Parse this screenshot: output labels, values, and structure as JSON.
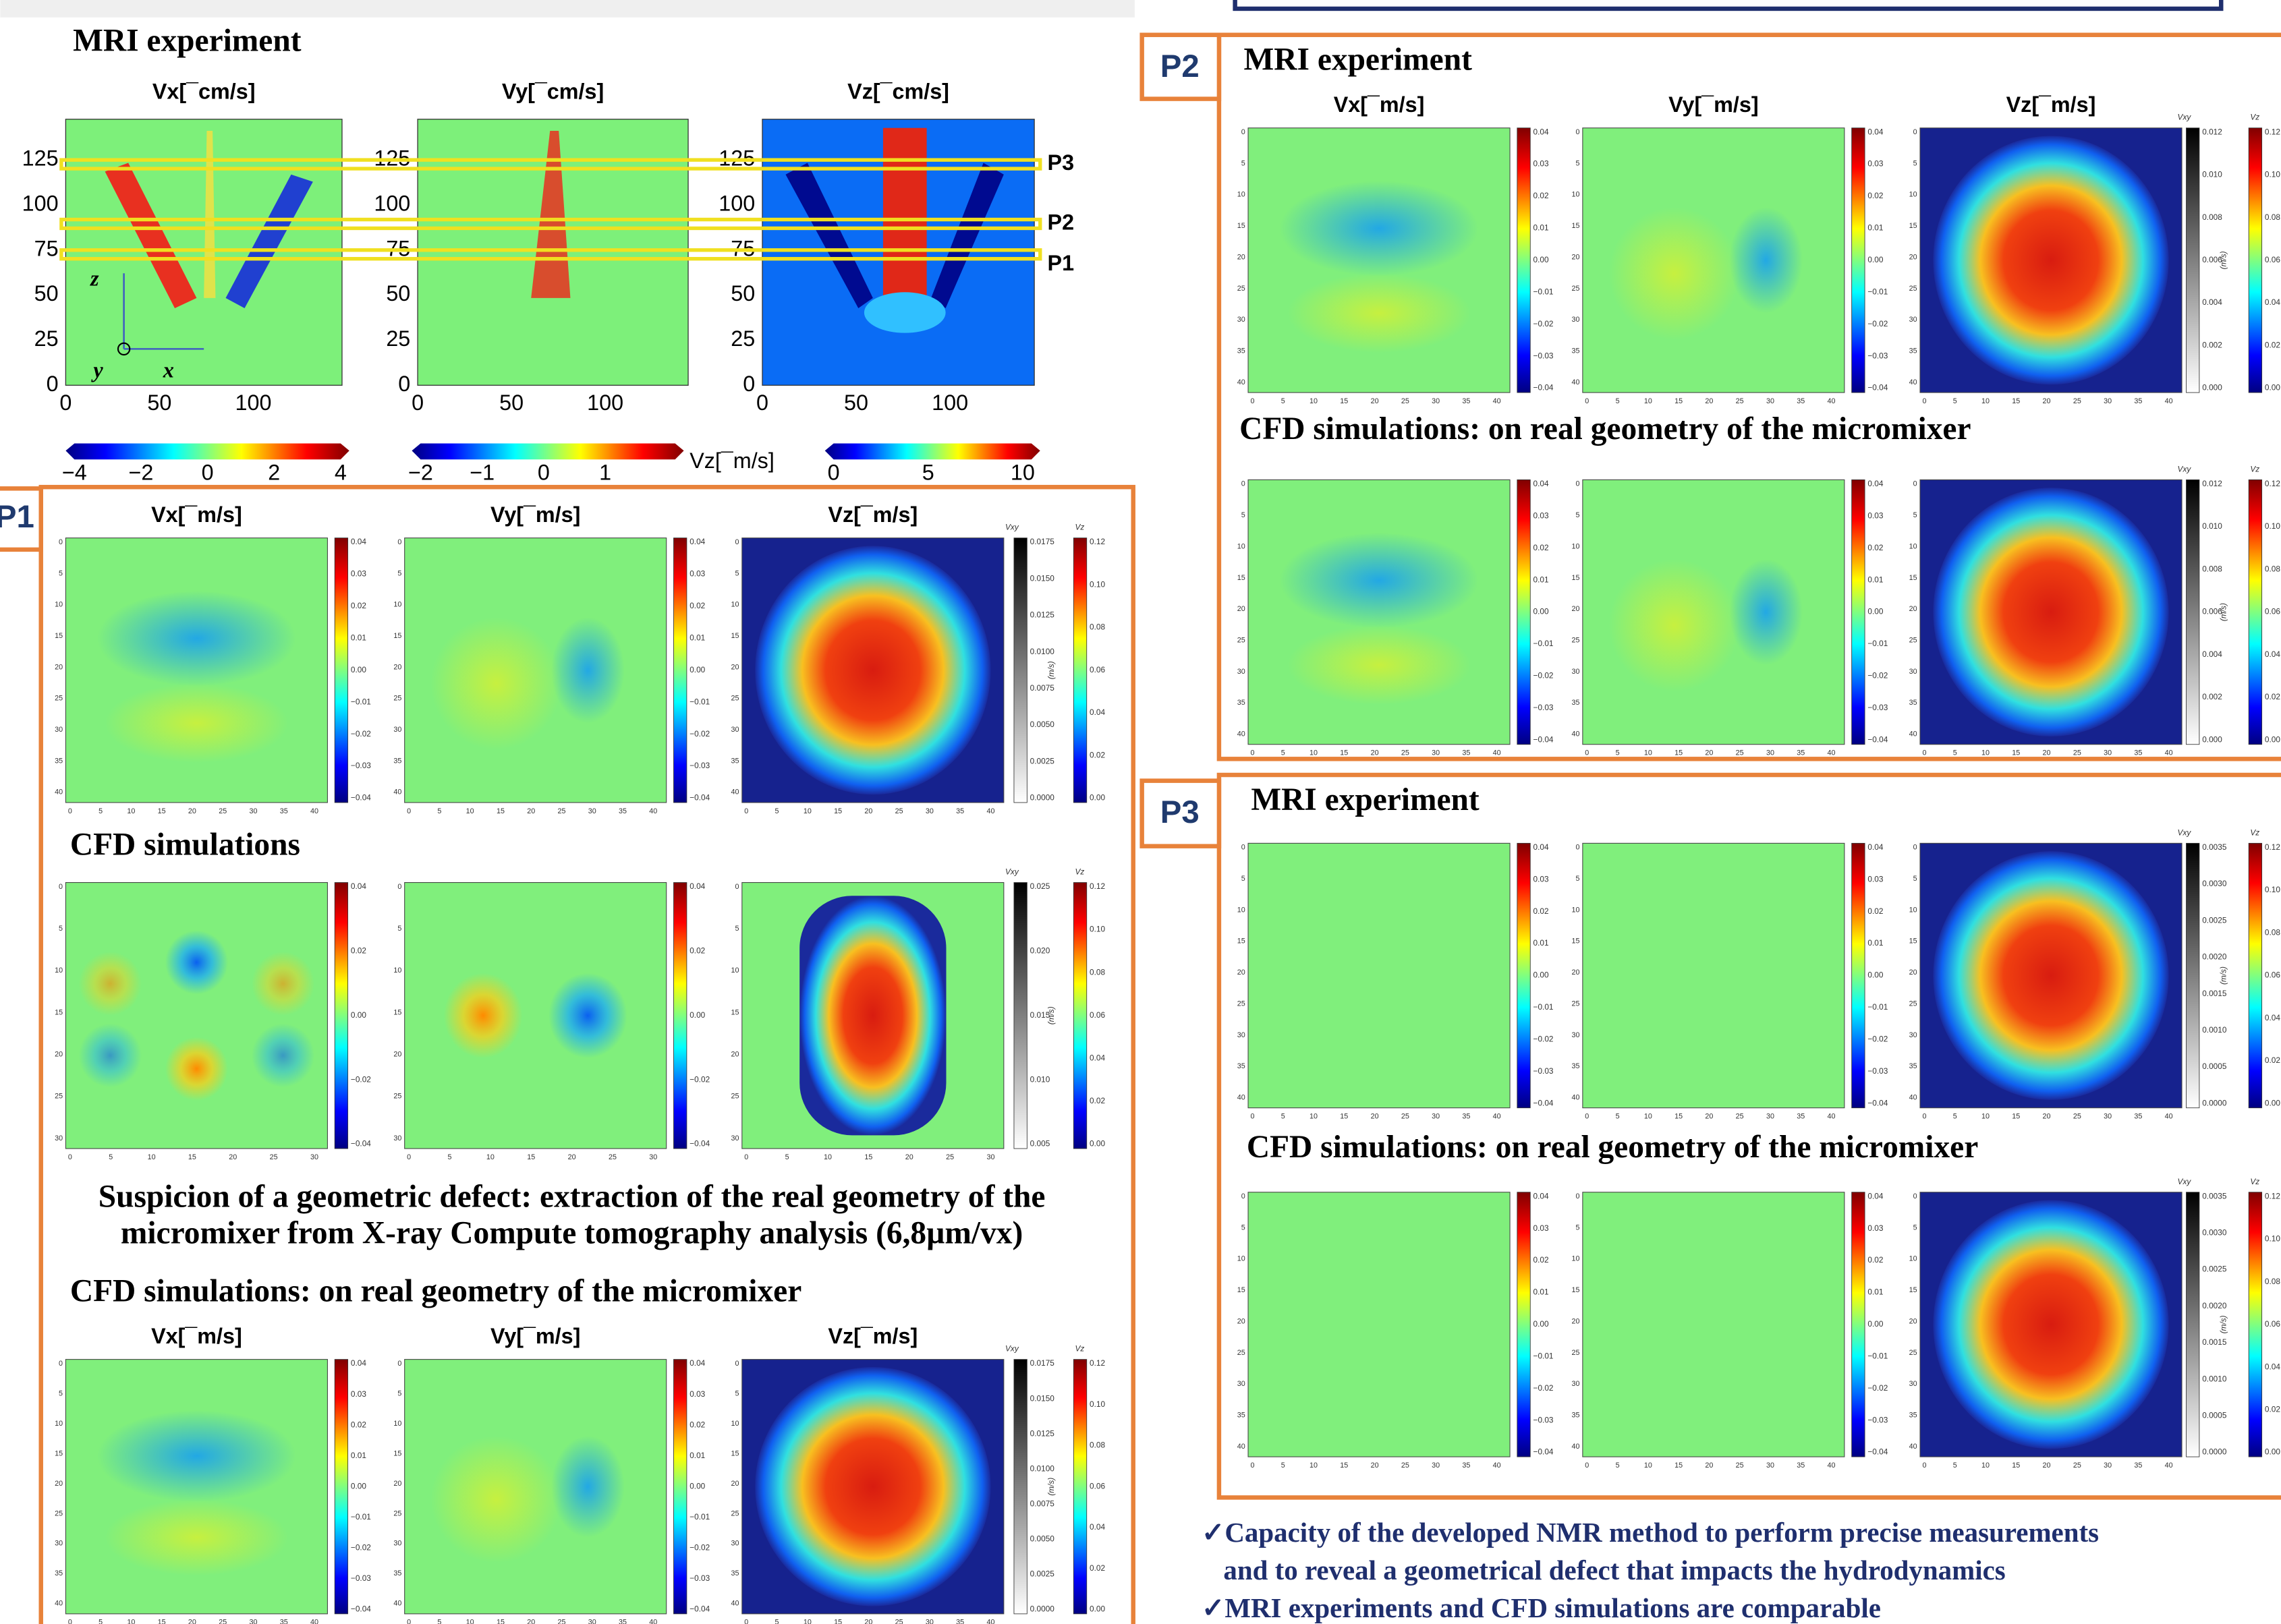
{
  "top": {
    "title": "MRI experiment",
    "plot_titles": [
      "Vx[¯cm/s]",
      "Vy[¯cm/s]",
      "Vz[¯cm/s]"
    ],
    "yticks": [
      "125",
      "100",
      "75",
      "50",
      "25",
      "0"
    ],
    "xticks": [
      "0",
      "50",
      "100"
    ],
    "axis_symbols": [
      "z⃗",
      "y⃗",
      "x⃗"
    ],
    "slice_labels": [
      "P3",
      "P2",
      "P1"
    ],
    "colorbars": [
      [
        "−4",
        "−2",
        "0",
        "2",
        "4"
      ],
      [
        "−2",
        "−1",
        "0",
        "1"
      ],
      [
        "0",
        "5",
        "10"
      ]
    ],
    "colorbar_label": "Vz[¯m/s]"
  },
  "scales": {
    "map_ticks": [
      "0",
      "5",
      "10",
      "15",
      "20",
      "25",
      "30",
      "35",
      "40"
    ],
    "map_ticks_cfd": [
      "0",
      "5",
      "10",
      "15",
      "20",
      "25",
      "30"
    ],
    "v_ticks": [
      "0.04",
      "0.03",
      "0.02",
      "0.01",
      "0.00",
      "−0.01",
      "−0.02",
      "−0.03",
      "−0.04"
    ],
    "v_ticks_cfd": [
      "0.04",
      "0.02",
      "0.00",
      "−0.02",
      "−0.04"
    ],
    "vz_ticks": [
      "0.12",
      "0.10",
      "0.08",
      "0.06",
      "0.04",
      "0.02",
      "0.00"
    ],
    "vxy_label": "Vxy",
    "vz_label": "Vz",
    "unit": "(m/s)"
  },
  "p1": {
    "label": "P1",
    "plot_titles": [
      "Vx[¯m/s]",
      "Vy[¯m/s]",
      "Vz[¯m/s]"
    ],
    "cfd_title": "CFD simulations",
    "caption": [
      "Suspicion of a geometric defect: extraction of the real geometry of the",
      "micromixer from X-ray Compute tomography analysis (6,8µm/vx)"
    ],
    "real_title": "CFD simulations: on real geometry of the micromixer",
    "vxy_ticks": [
      "0.0175",
      "0.0150",
      "0.0125",
      "0.0100",
      "0.0075",
      "0.0050",
      "0.0025",
      "0.0000"
    ],
    "vxy_ticks_cfd": [
      "0.025",
      "0.020",
      "0.015",
      "0.010",
      "0.005"
    ]
  },
  "p2": {
    "label": "P2",
    "mri_title": "MRI experiment",
    "plot_titles": [
      "Vx[¯m/s]",
      "Vy[¯m/s]",
      "Vz[¯m/s]"
    ],
    "real_title": "CFD simulations: on real geometry of the micromixer",
    "vxy_ticks": [
      "0.012",
      "0.010",
      "0.008",
      "0.006",
      "0.004",
      "0.002",
      "0.000"
    ]
  },
  "p3": {
    "label": "P3",
    "mri_title": "MRI experiment",
    "real_title": "CFD simulations: on real geometry of the micromixer",
    "vxy_ticks": [
      "0.0035",
      "0.0030",
      "0.0025",
      "0.0020",
      "0.0015",
      "0.0010",
      "0.0005",
      "0.0000"
    ]
  },
  "conclusions": [
    "✓Capacity of the developed NMR method to perform precise measurements",
    "and to reveal a geometrical defect that impacts the hydrodynamics",
    "✓MRI experiments and CFD simulations are comparable"
  ]
}
